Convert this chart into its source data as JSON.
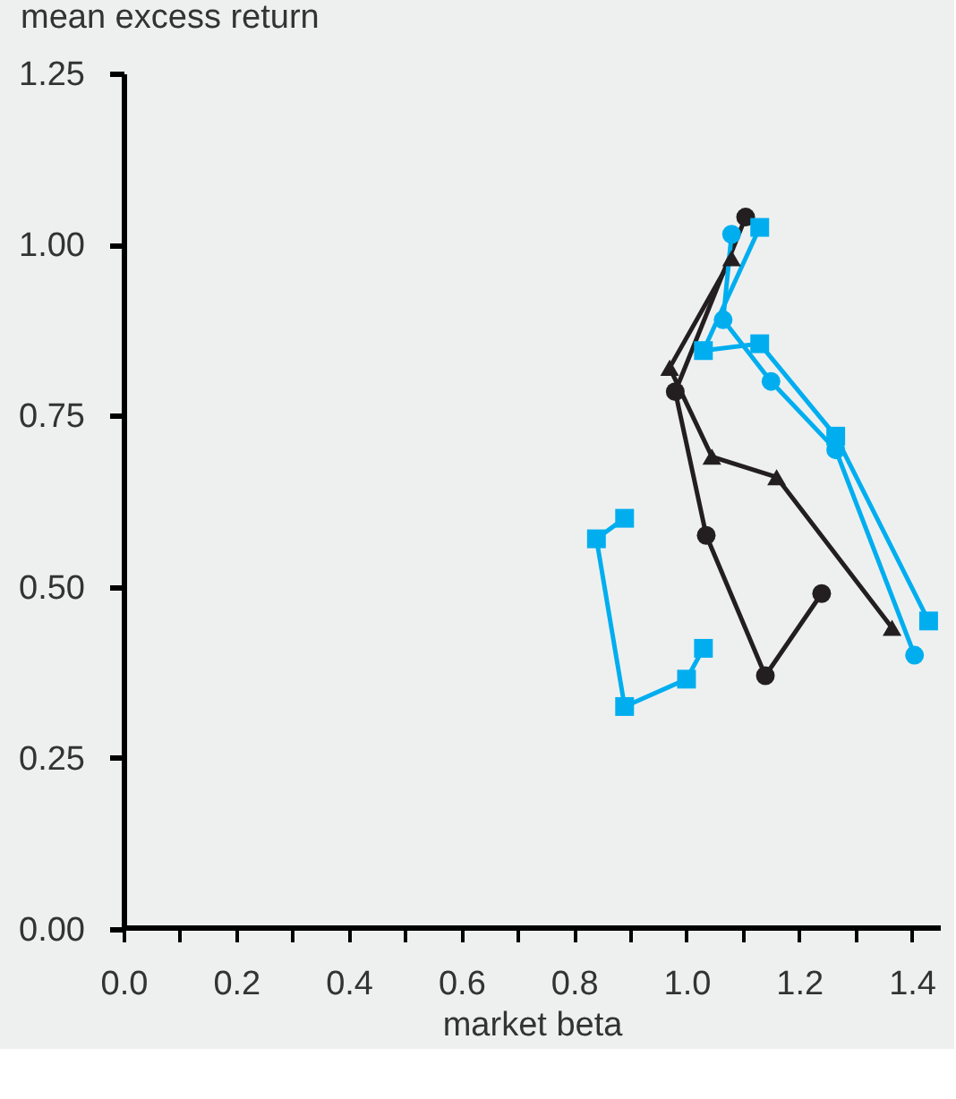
{
  "chart_data": {
    "type": "line",
    "xlabel": "market beta",
    "ylabel": "mean excess return",
    "xlim": [
      0,
      1.45
    ],
    "ylim": [
      0,
      1.25
    ],
    "xticks": [
      {
        "value": 0,
        "label": "0.0"
      },
      {
        "value": 0.1,
        "label": null
      },
      0.2,
      {
        "value": 0.3,
        "label": null
      },
      0.4,
      {
        "value": 0.5,
        "label": null
      },
      0.6,
      {
        "value": 0.7,
        "label": null
      },
      0.8,
      {
        "value": 0.9,
        "label": null
      },
      {
        "value": 1,
        "label": "1.0"
      },
      {
        "value": 1.1,
        "label": null
      },
      1.2,
      {
        "value": 1.3,
        "label": null
      },
      1.4
    ],
    "yticks": [
      {
        "value": 0,
        "label": "0.00"
      },
      0.25,
      {
        "value": 0.5,
        "label": "0.50"
      },
      0.75,
      {
        "value": 1,
        "label": "1.00"
      },
      1.25
    ],
    "grid": false,
    "line_style": "solid",
    "series": [
      {
        "color": "#231f20",
        "marker": "circle",
        "x": [
          1.24,
          1.14,
          1.035,
          0.98,
          1.105
        ],
        "values": [
          0.49,
          0.37,
          0.575,
          0.785,
          1.04
        ]
      },
      {
        "color": "#231f20",
        "marker": "triangle",
        "x": [
          1.08,
          0.97,
          1.045,
          1.16,
          1.365
        ],
        "values": [
          0.98,
          0.82,
          0.69,
          0.66,
          0.44
        ]
      },
      {
        "color": "#00aeef",
        "marker": "circle",
        "x": [
          1.08,
          1.065,
          1.15,
          1.265,
          1.405
        ],
        "values": [
          1.015,
          0.89,
          0.8,
          0.7,
          0.4
        ]
      },
      {
        "color": "#00aeef",
        "marker": "square",
        "x": [
          1.13,
          1.03,
          1.13,
          1.265,
          1.43
        ],
        "values": [
          1.025,
          0.845,
          0.855,
          0.72,
          0.45
        ]
      },
      {
        "color": "#00aeef",
        "marker": "square",
        "x": [
          0.89,
          0.84,
          0.89,
          1.0,
          1.03
        ],
        "values": [
          0.6,
          0.57,
          0.325,
          0.365,
          0.41
        ]
      }
    ]
  }
}
